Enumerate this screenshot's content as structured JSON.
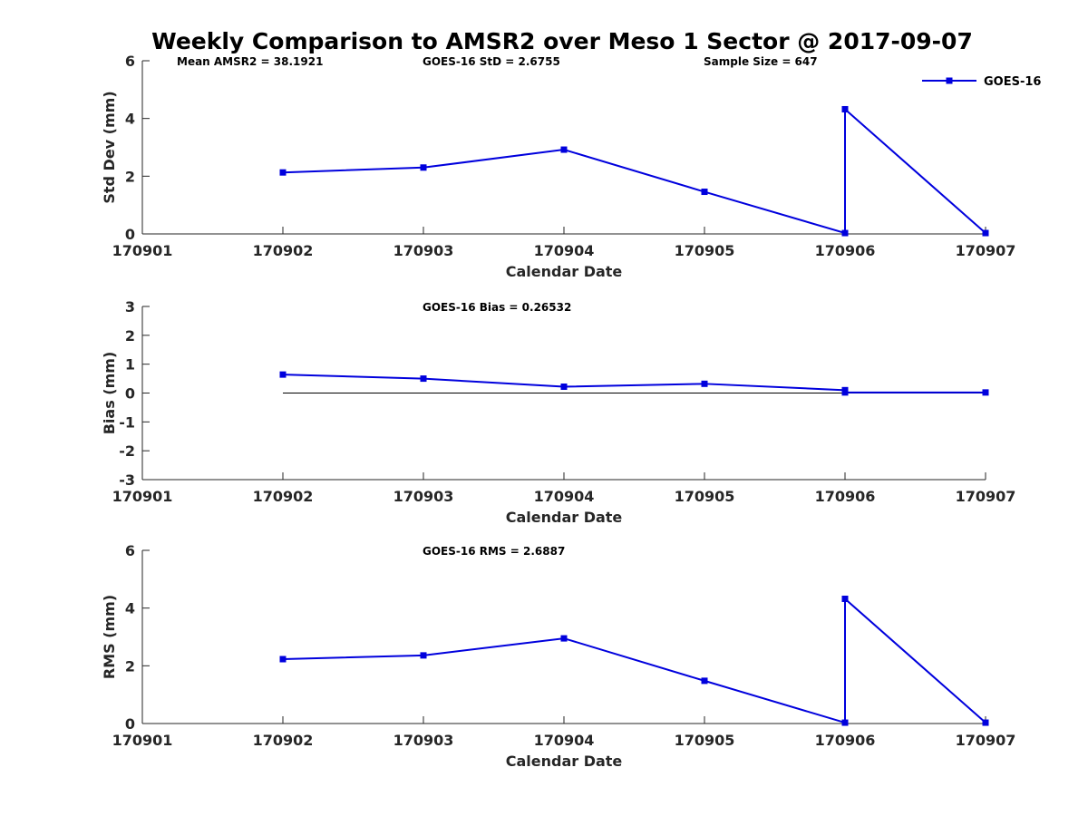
{
  "figure": {
    "title": "Weekly Comparison to AMSR2 over Meso 1 Sector @ 2017-09-07",
    "series_color": "#0000dd",
    "series_name": "GOES-16",
    "legend_position": "top-right"
  },
  "chart_data": [
    {
      "type": "line",
      "categories": [
        "170901",
        "170902",
        "170903",
        "170904",
        "170905",
        "170906",
        "170907"
      ],
      "x": [
        170902,
        170903,
        170904,
        170905,
        170906,
        170906,
        170907
      ],
      "series": [
        {
          "name": "GOES-16",
          "values": [
            2.13,
            2.3,
            2.92,
            1.46,
            0.03,
            4.32,
            0.03
          ]
        }
      ],
      "title": "",
      "xlabel": "Calendar Date",
      "ylabel": "Std Dev (mm)",
      "xlim": [
        170901,
        170907
      ],
      "ylim": [
        0,
        6
      ],
      "yticks": [
        "0",
        "2",
        "4",
        "6"
      ],
      "annotations": [
        "Mean AMSR2 = 38.1921",
        "GOES-16 StD = 2.6755",
        "Sample Size = 647"
      ],
      "legend": [
        "GOES-16"
      ],
      "grid": false
    },
    {
      "type": "line",
      "categories": [
        "170901",
        "170902",
        "170903",
        "170904",
        "170905",
        "170906",
        "170907"
      ],
      "x": [
        170902,
        170903,
        170904,
        170905,
        170906,
        170906,
        170907
      ],
      "series": [
        {
          "name": "GOES-16",
          "values": [
            0.64,
            0.5,
            0.22,
            0.32,
            0.1,
            0.02,
            0.02
          ]
        }
      ],
      "reference_line": {
        "y": 0,
        "x_from": 170902,
        "x_to": 170907
      },
      "title": "",
      "xlabel": "Calendar Date",
      "ylabel": "Bias (mm)",
      "xlim": [
        170901,
        170907
      ],
      "ylim": [
        -3,
        3
      ],
      "yticks": [
        "-3",
        "-2",
        "-1",
        "0",
        "1",
        "2",
        "3"
      ],
      "annotations": [
        "GOES-16 Bias  = 0.26532"
      ],
      "grid": false
    },
    {
      "type": "line",
      "categories": [
        "170901",
        "170902",
        "170903",
        "170904",
        "170905",
        "170906",
        "170907"
      ],
      "x": [
        170902,
        170903,
        170904,
        170905,
        170906,
        170906,
        170907
      ],
      "series": [
        {
          "name": "GOES-16",
          "values": [
            2.23,
            2.36,
            2.95,
            1.48,
            0.03,
            4.32,
            0.03
          ]
        }
      ],
      "title": "",
      "xlabel": "Calendar Date",
      "ylabel": "RMS (mm)",
      "xlim": [
        170901,
        170907
      ],
      "ylim": [
        0,
        6
      ],
      "yticks": [
        "0",
        "2",
        "4",
        "6"
      ],
      "annotations": [
        "GOES-16 RMS = 2.6887"
      ],
      "grid": false
    }
  ]
}
